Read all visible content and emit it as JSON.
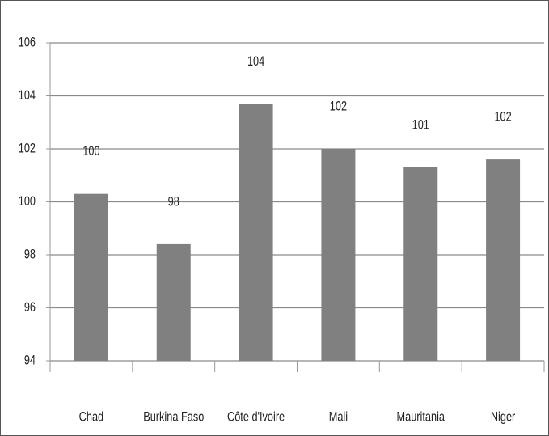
{
  "chart_data": {
    "type": "bar",
    "categories": [
      "Chad",
      "Burkina Faso",
      "Côte d'Ivoire",
      "Mali",
      "Mauritania",
      "Niger"
    ],
    "values": [
      100.3,
      98.4,
      103.7,
      102.0,
      101.3,
      101.6
    ],
    "value_labels": [
      "100",
      "98",
      "104",
      "102",
      "101",
      "102"
    ],
    "color": "#808080",
    "ylim": [
      94,
      106
    ],
    "yticks": [
      94,
      96,
      98,
      100,
      102,
      104,
      106
    ],
    "grid": true
  }
}
